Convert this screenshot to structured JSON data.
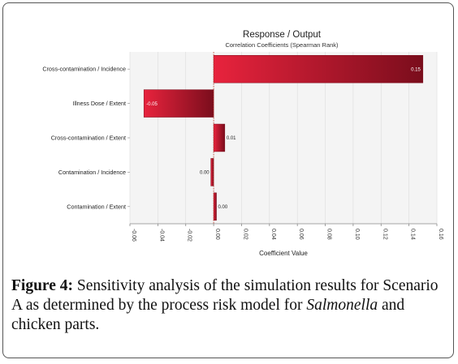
{
  "chart_data": {
    "type": "bar",
    "orientation": "horizontal",
    "title": "Response / Output",
    "subtitle": "Correlation Coefficients (Spearman Rank)",
    "xlabel": "Coefficient Value",
    "ylabel": "",
    "xlim": [
      -0.06,
      0.16
    ],
    "xticks": [
      -0.06,
      -0.04,
      -0.02,
      0.0,
      0.02,
      0.04,
      0.06,
      0.08,
      0.1,
      0.12,
      0.14,
      0.16
    ],
    "xtick_labels": [
      "-0.06",
      "-0.04",
      "-0.02",
      "0.00",
      "0.02",
      "0.04",
      "0.06",
      "0.08",
      "0.10",
      "0.12",
      "0.14",
      "0.16"
    ],
    "categories": [
      "Cross-contamination / Incidence",
      "Illness Dose / Extent",
      "Cross-contamination / Extent",
      "Contamination / Incidence",
      "Contamination / Extent"
    ],
    "values": [
      0.15,
      -0.05,
      0.008,
      -0.002,
      0.002
    ],
    "data_labels": [
      "0.15",
      "-0.05",
      "0.01",
      "0.00",
      "0.00"
    ],
    "grid": true,
    "legend": "none",
    "colors": {
      "bar_light": "#e8233d",
      "bar_dark": "#7a0d1c",
      "zero_line": "#c0392b",
      "grid": "#dcdcdc",
      "plot_bg": "#f4f4f4"
    }
  },
  "caption": {
    "label": "Figure 4:",
    "text_before": " Sensitivity analysis of the simulation results for Scenario A as determined by the process risk model for ",
    "italic": "Salmonella",
    "text_after": " and chicken parts."
  }
}
